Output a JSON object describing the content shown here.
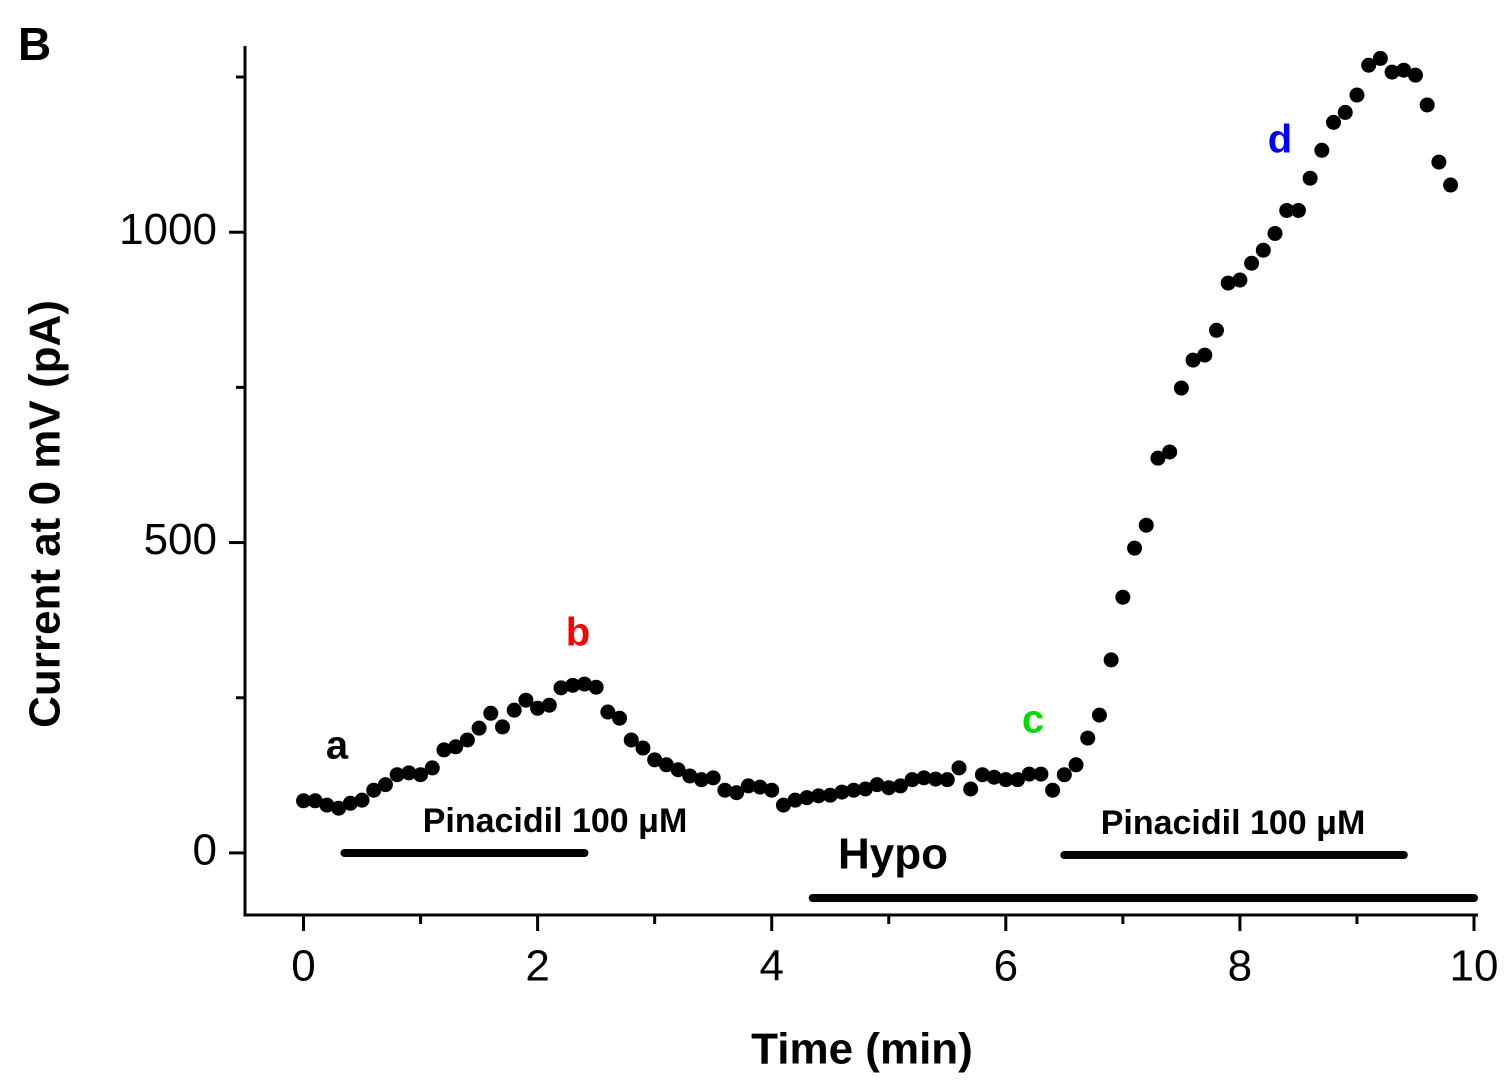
{
  "chart_data": {
    "type": "scatter",
    "panel_label": "B",
    "xlabel": "Time (min)",
    "ylabel": "Current at 0 mV (pA)",
    "x": [
      0,
      0.1,
      0.2,
      0.3,
      0.4,
      0.5,
      0.6,
      0.7,
      0.8,
      0.9,
      1.0,
      1.1,
      1.2,
      1.3,
      1.4,
      1.5,
      1.6,
      1.7,
      1.8,
      1.9,
      2.0,
      2.1,
      2.2,
      2.3,
      2.4,
      2.5,
      2.6,
      2.7,
      2.8,
      2.9,
      3.0,
      3.1,
      3.2,
      3.3,
      3.4,
      3.5,
      3.6,
      3.7,
      3.8,
      3.9,
      4.0,
      4.1,
      4.2,
      4.3,
      4.4,
      4.5,
      4.6,
      4.7,
      4.8,
      4.9,
      5.0,
      5.1,
      5.2,
      5.3,
      5.4,
      5.5,
      5.6,
      5.7,
      5.8,
      5.9,
      6.0,
      6.1,
      6.2,
      6.3,
      6.4,
      6.5,
      6.6,
      6.7,
      6.8,
      6.9,
      7.0,
      7.1,
      7.2,
      7.3,
      7.4,
      7.5,
      7.6,
      7.7,
      7.8,
      7.9,
      8.0,
      8.1,
      8.2,
      8.3,
      8.4,
      8.5,
      8.6,
      8.7,
      8.8,
      8.9,
      9.0,
      9.1,
      9.2,
      9.3,
      9.4,
      9.5,
      9.6,
      9.7,
      9.8
    ],
    "values": [
      84,
      84,
      77,
      72,
      80,
      85,
      101,
      110,
      126,
      129,
      126,
      137,
      166,
      171,
      182,
      201,
      225,
      203,
      230,
      246,
      233,
      238,
      266,
      270,
      272,
      267,
      227,
      217,
      182,
      169,
      150,
      142,
      134,
      124,
      118,
      121,
      101,
      97,
      108,
      106,
      101,
      77,
      85,
      89,
      92,
      93,
      98,
      101,
      103,
      110,
      105,
      108,
      118,
      121,
      119,
      118,
      137,
      103,
      126,
      122,
      118,
      118,
      127,
      127,
      101,
      126,
      142,
      185,
      222,
      311,
      412,
      491,
      528,
      636,
      646,
      749,
      794,
      802,
      842,
      918,
      923,
      950,
      971,
      998,
      1035,
      1035,
      1087,
      1132,
      1177,
      1193,
      1221,
      1269,
      1280,
      1258,
      1261,
      1253,
      1205,
      1113,
      1076
    ],
    "color": "#000000",
    "xlim": [
      -0.5,
      10
    ],
    "ylim": [
      -100,
      1300
    ],
    "xticks": [
      0,
      2,
      4,
      6,
      8,
      10
    ],
    "yticks": [
      0,
      500,
      1000
    ],
    "xminorticks": [
      1,
      3,
      5,
      7,
      9
    ],
    "yminorticks": [
      250,
      750,
      1250
    ],
    "annotations": [
      {
        "text": "a",
        "color": "#000000"
      },
      {
        "text": "b",
        "color": "#ff0000"
      },
      {
        "text": "c",
        "color": "#00dd00"
      },
      {
        "text": "d",
        "color": "#0000ff"
      }
    ],
    "periods": [
      {
        "label": "Pinacidil 100 μM",
        "start": 0.35,
        "end": 2.4
      },
      {
        "label": "Hypo",
        "start": 4.35,
        "end": 10
      },
      {
        "label": "Pinacidil 100 μM",
        "start": 6.5,
        "end": 9.4
      }
    ]
  }
}
